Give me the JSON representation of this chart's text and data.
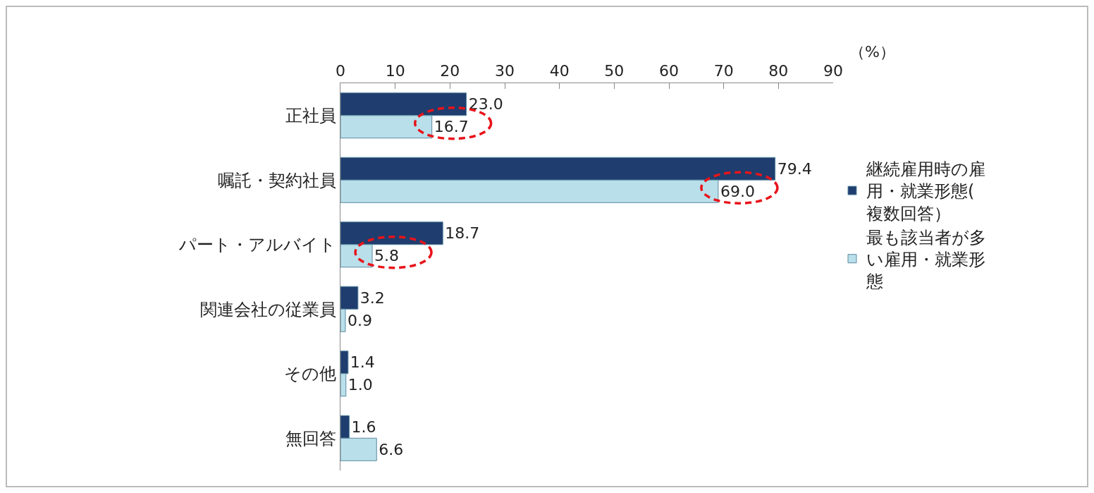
{
  "chart_data": {
    "type": "bar",
    "orientation": "horizontal",
    "categories": [
      "正社員",
      "嘱託・契約社員",
      "パート・アルバイト",
      "関連会社の従業員",
      "その他",
      "無回答"
    ],
    "series": [
      {
        "name": "継続雇用時の雇用・就業形態(複数回答）",
        "color": "#1f3d6e",
        "values": [
          23.0,
          79.4,
          18.7,
          3.2,
          1.4,
          1.6
        ],
        "value_labels": [
          "23.0",
          "79.4",
          "18.7",
          "3.2",
          "1.4",
          "1.6"
        ]
      },
      {
        "name": "最も該当者が多い雇用・就業形態",
        "color": "#b9dfea",
        "values": [
          16.7,
          69.0,
          5.8,
          0.9,
          1.0,
          6.6
        ],
        "value_labels": [
          "16.7",
          "69.0",
          "5.8",
          "0.9",
          "1.0",
          "6.6"
        ]
      }
    ],
    "xlim": [
      0,
      90
    ],
    "xticks": [
      0,
      10,
      20,
      30,
      40,
      50,
      60,
      70,
      80,
      90
    ],
    "data_labels": true,
    "grid": false,
    "legend": "right",
    "annotations": [
      "（%）"
    ]
  }
}
